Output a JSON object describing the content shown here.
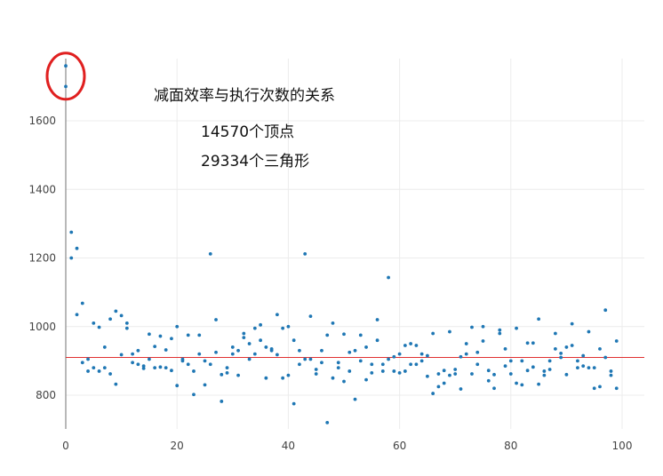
{
  "chart_data": {
    "type": "scatter",
    "title": "减面效率与执行次数的关系",
    "subtitle_lines": [
      "14570个顶点",
      "29334个三角形"
    ],
    "xlabel": "",
    "ylabel": "",
    "xlim": [
      0,
      100
    ],
    "ylim": [
      700,
      1800
    ],
    "x_ticks": [
      0,
      20,
      40,
      60,
      80,
      100
    ],
    "y_ticks": [
      800,
      1000,
      1200,
      1400,
      1600
    ],
    "grid": true,
    "mean_line": {
      "y": 910,
      "color": "#e03030"
    },
    "outlier_marker": {
      "x": 0,
      "y_range": [
        1700,
        1760
      ],
      "color": "#e02020"
    },
    "series": [
      {
        "name": "samples",
        "color": "#1f77b4",
        "points": [
          [
            0,
            1760
          ],
          [
            0,
            1700
          ],
          [
            1,
            1275
          ],
          [
            1,
            1200
          ],
          [
            2,
            1228
          ],
          [
            2,
            1035
          ],
          [
            3,
            1068
          ],
          [
            3,
            895
          ],
          [
            4,
            870
          ],
          [
            4,
            905
          ],
          [
            5,
            1010
          ],
          [
            5,
            880
          ],
          [
            6,
            998
          ],
          [
            6,
            870
          ],
          [
            7,
            940
          ],
          [
            7,
            880
          ],
          [
            8,
            1022
          ],
          [
            8,
            862
          ],
          [
            9,
            1045
          ],
          [
            9,
            832
          ],
          [
            10,
            1032
          ],
          [
            10,
            918
          ],
          [
            11,
            1010
          ],
          [
            11,
            995
          ],
          [
            12,
            895
          ],
          [
            12,
            920
          ],
          [
            13,
            890
          ],
          [
            13,
            930
          ],
          [
            14,
            885
          ],
          [
            14,
            878
          ],
          [
            15,
            978
          ],
          [
            15,
            905
          ],
          [
            16,
            880
          ],
          [
            16,
            942
          ],
          [
            17,
            972
          ],
          [
            17,
            882
          ],
          [
            18,
            880
          ],
          [
            18,
            932
          ],
          [
            19,
            965
          ],
          [
            19,
            872
          ],
          [
            20,
            828
          ],
          [
            20,
            1000
          ],
          [
            21,
            905
          ],
          [
            21,
            900
          ],
          [
            22,
            890
          ],
          [
            22,
            975
          ],
          [
            23,
            870
          ],
          [
            23,
            802
          ],
          [
            24,
            920
          ],
          [
            24,
            975
          ],
          [
            25,
            830
          ],
          [
            25,
            900
          ],
          [
            26,
            1212
          ],
          [
            26,
            890
          ],
          [
            27,
            1020
          ],
          [
            27,
            925
          ],
          [
            28,
            782
          ],
          [
            28,
            860
          ],
          [
            29,
            880
          ],
          [
            29,
            865
          ],
          [
            30,
            920
          ],
          [
            30,
            940
          ],
          [
            31,
            858
          ],
          [
            31,
            930
          ],
          [
            32,
            968
          ],
          [
            32,
            980
          ],
          [
            33,
            905
          ],
          [
            33,
            950
          ],
          [
            34,
            995
          ],
          [
            34,
            920
          ],
          [
            35,
            1005
          ],
          [
            35,
            960
          ],
          [
            36,
            940
          ],
          [
            36,
            850
          ],
          [
            37,
            935
          ],
          [
            37,
            930
          ],
          [
            38,
            1035
          ],
          [
            38,
            918
          ],
          [
            39,
            995
          ],
          [
            39,
            850
          ],
          [
            40,
            1000
          ],
          [
            40,
            858
          ],
          [
            41,
            960
          ],
          [
            41,
            775
          ],
          [
            42,
            930
          ],
          [
            42,
            890
          ],
          [
            43,
            1212
          ],
          [
            43,
            905
          ],
          [
            44,
            1030
          ],
          [
            44,
            905
          ],
          [
            45,
            875
          ],
          [
            45,
            862
          ],
          [
            46,
            930
          ],
          [
            46,
            895
          ],
          [
            47,
            720
          ],
          [
            47,
            975
          ],
          [
            48,
            1010
          ],
          [
            48,
            850
          ],
          [
            49,
            895
          ],
          [
            49,
            880
          ],
          [
            50,
            978
          ],
          [
            50,
            840
          ],
          [
            51,
            925
          ],
          [
            51,
            870
          ],
          [
            52,
            930
          ],
          [
            52,
            788
          ],
          [
            53,
            975
          ],
          [
            53,
            900
          ],
          [
            54,
            940
          ],
          [
            54,
            845
          ],
          [
            55,
            890
          ],
          [
            55,
            865
          ],
          [
            56,
            1020
          ],
          [
            56,
            960
          ],
          [
            57,
            890
          ],
          [
            57,
            870
          ],
          [
            58,
            1143
          ],
          [
            58,
            905
          ],
          [
            59,
            912
          ],
          [
            59,
            870
          ],
          [
            60,
            920
          ],
          [
            60,
            865
          ],
          [
            61,
            945
          ],
          [
            61,
            870
          ],
          [
            62,
            950
          ],
          [
            62,
            890
          ],
          [
            63,
            945
          ],
          [
            63,
            890
          ],
          [
            64,
            900
          ],
          [
            64,
            920
          ],
          [
            65,
            915
          ],
          [
            65,
            855
          ],
          [
            66,
            980
          ],
          [
            66,
            805
          ],
          [
            67,
            862
          ],
          [
            67,
            825
          ],
          [
            68,
            835
          ],
          [
            68,
            872
          ],
          [
            69,
            985
          ],
          [
            69,
            858
          ],
          [
            70,
            875
          ],
          [
            70,
            862
          ],
          [
            71,
            912
          ],
          [
            71,
            818
          ],
          [
            72,
            950
          ],
          [
            72,
            920
          ],
          [
            73,
            998
          ],
          [
            73,
            862
          ],
          [
            74,
            890
          ],
          [
            74,
            925
          ],
          [
            75,
            958
          ],
          [
            75,
            1000
          ],
          [
            76,
            872
          ],
          [
            76,
            842
          ],
          [
            77,
            860
          ],
          [
            77,
            820
          ],
          [
            78,
            990
          ],
          [
            78,
            980
          ],
          [
            79,
            935
          ],
          [
            79,
            885
          ],
          [
            80,
            900
          ],
          [
            80,
            862
          ],
          [
            81,
            995
          ],
          [
            81,
            835
          ],
          [
            82,
            900
          ],
          [
            82,
            830
          ],
          [
            83,
            952
          ],
          [
            83,
            872
          ],
          [
            84,
            952
          ],
          [
            84,
            882
          ],
          [
            85,
            1022
          ],
          [
            85,
            832
          ],
          [
            86,
            858
          ],
          [
            86,
            870
          ],
          [
            87,
            900
          ],
          [
            87,
            875
          ],
          [
            88,
            980
          ],
          [
            88,
            935
          ],
          [
            89,
            910
          ],
          [
            89,
            922
          ],
          [
            90,
            940
          ],
          [
            90,
            860
          ],
          [
            91,
            1008
          ],
          [
            91,
            945
          ],
          [
            92,
            900
          ],
          [
            92,
            880
          ],
          [
            93,
            915
          ],
          [
            93,
            885
          ],
          [
            94,
            985
          ],
          [
            94,
            880
          ],
          [
            95,
            880
          ],
          [
            95,
            820
          ],
          [
            96,
            935
          ],
          [
            96,
            825
          ],
          [
            97,
            1048
          ],
          [
            97,
            910
          ],
          [
            98,
            870
          ],
          [
            98,
            858
          ],
          [
            99,
            958
          ],
          [
            99,
            820
          ]
        ]
      }
    ]
  }
}
